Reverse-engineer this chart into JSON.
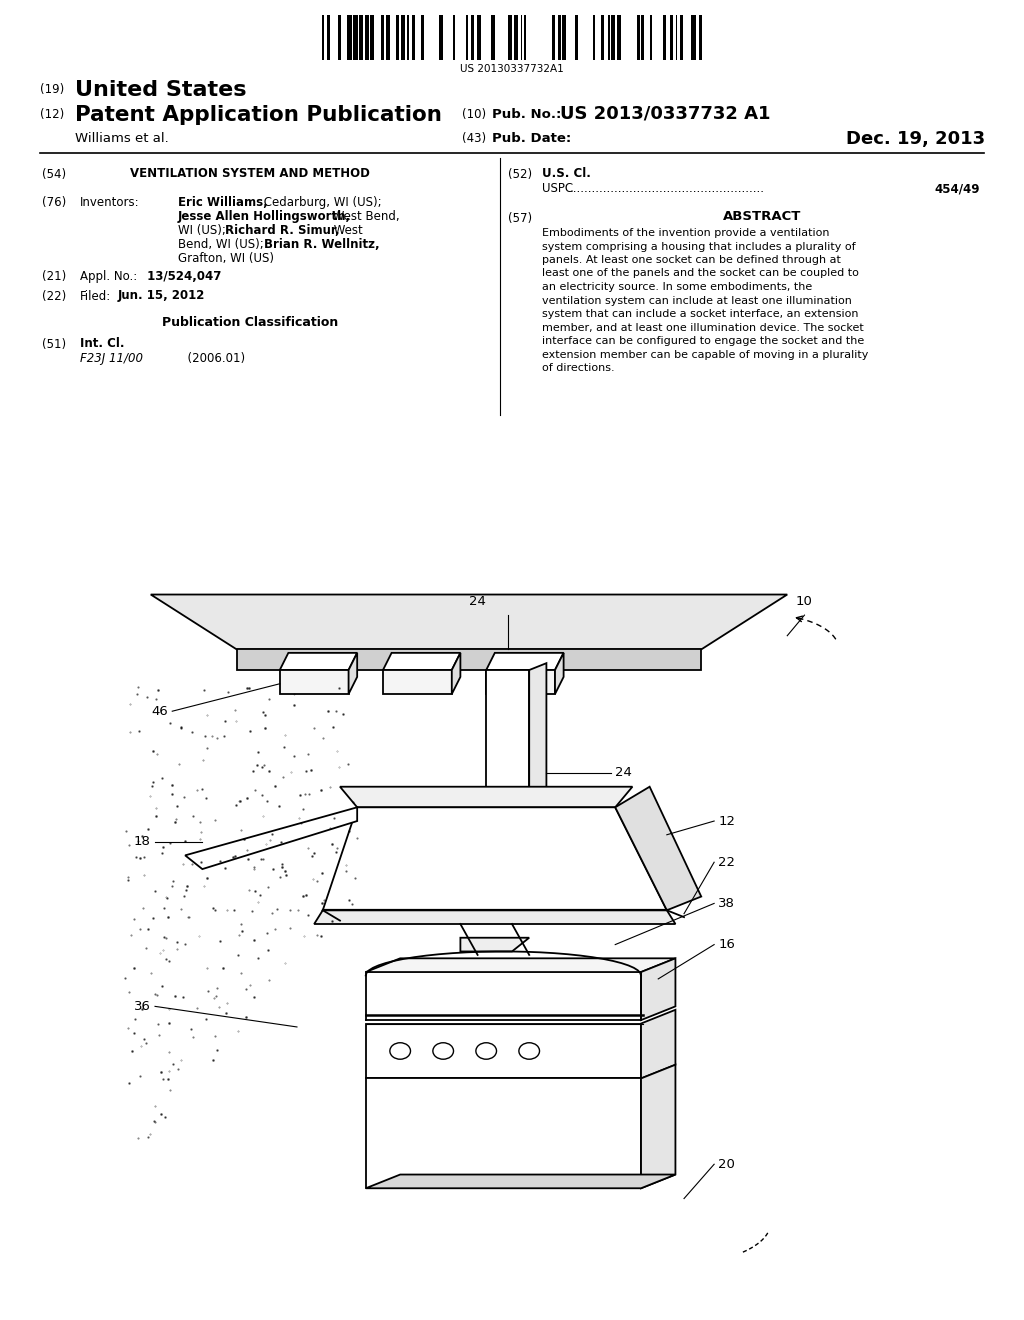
{
  "background_color": "#ffffff",
  "barcode_text": "US 20130337732A1",
  "pub_no_text": "US 2013/0337732 A1",
  "pub_date_text": "Dec. 19, 2013",
  "abstract_text": "Embodiments of the invention provide a ventilation system comprising a housing that includes a plurality of panels. At least one socket can be defined through at least one of the panels and the socket can be coupled to an electricity source. In some embodiments, the ventilation system can include at least one illumination system that can include a socket interface, an extension member, and at least one illumination device. The socket interface can be configured to engage the socket and the extension member can be capable of moving in a plurality of directions."
}
